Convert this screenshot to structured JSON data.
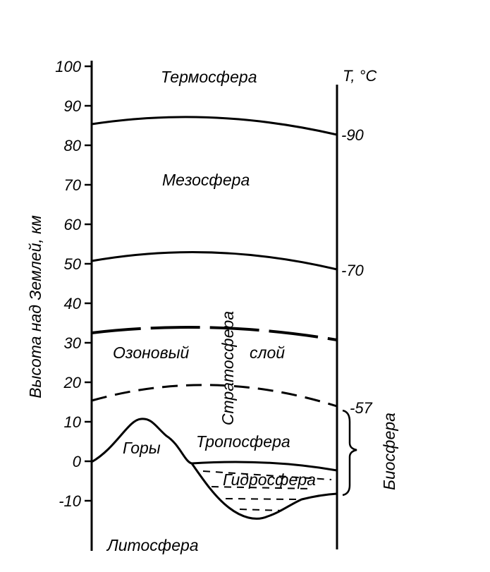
{
  "axis": {
    "y_label": "Высота над Землей, км",
    "y_ticks": [
      100,
      90,
      80,
      70,
      60,
      50,
      40,
      30,
      20,
      10,
      0,
      -10
    ],
    "temp_label": "T, °C"
  },
  "temperatures": [
    {
      "value": "-90",
      "height_km": 82.5
    },
    {
      "value": "-70",
      "height_km": 48
    },
    {
      "value": "-57",
      "height_km": 12.5
    }
  ],
  "layers": {
    "thermosphere": "Термосфера",
    "mesosphere": "Мезосфера",
    "stratosphere": "Стратосфера",
    "ozone_left": "Озоновый",
    "ozone_right": "слой",
    "troposphere": "Тропосфера",
    "mountains": "Горы",
    "hydrosphere": "Гидросфера",
    "lithosphere": "Литосфера",
    "biosphere": "Биосфера"
  }
}
